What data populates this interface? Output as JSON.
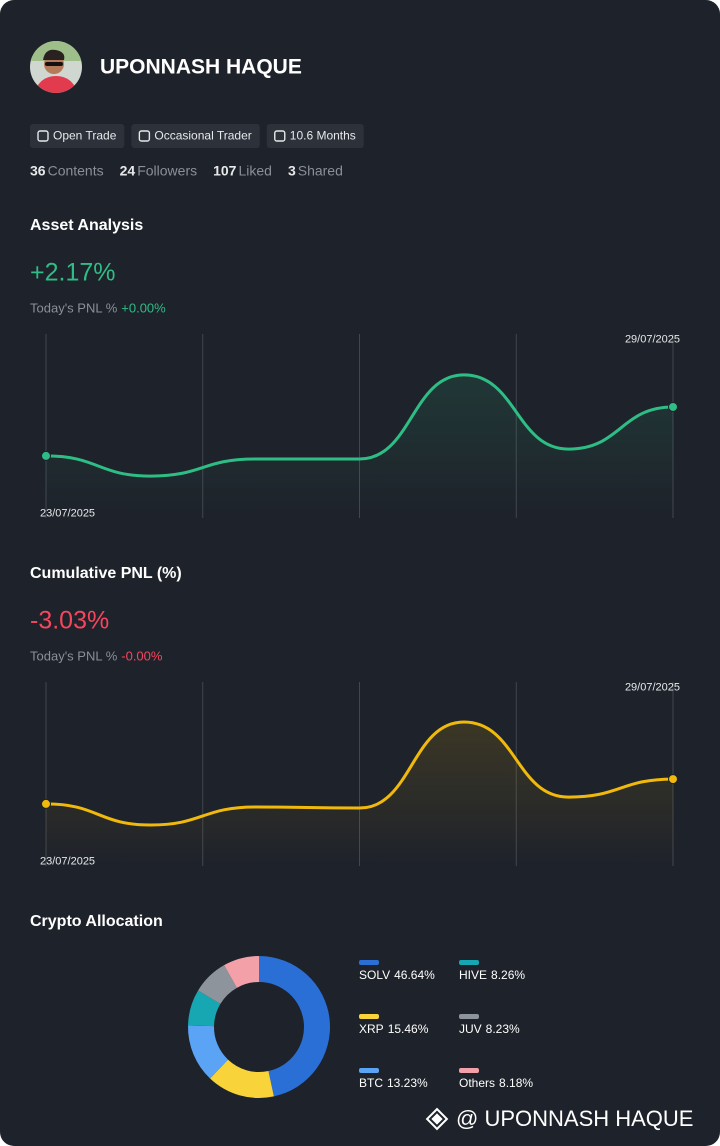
{
  "profile": {
    "name": "UPONNASH HAQUE",
    "badges": [
      "Open Trade",
      "Occasional Trader",
      "10.6 Months"
    ],
    "stats": [
      {
        "value": "36",
        "label": "Contents"
      },
      {
        "value": "24",
        "label": "Followers"
      },
      {
        "value": "107",
        "label": "Liked"
      },
      {
        "value": "3",
        "label": "Shared"
      }
    ]
  },
  "chart_data": [
    {
      "type": "line",
      "title": "Asset Analysis",
      "headline": "+2.17%",
      "pnl_label": "Today's PNL %",
      "pnl_value": "+0.00%",
      "categories": [
        "23/07/2025",
        null,
        null,
        null,
        null,
        null,
        "29/07/2025"
      ],
      "values": [
        35.6,
        24.4,
        33.9,
        33.9,
        80.6,
        39.4,
        62.8
      ],
      "color": "#2ebd85"
    },
    {
      "type": "line",
      "title": "Cumulative PNL (%)",
      "headline": "-3.03%",
      "pnl_label": "Today's PNL %",
      "pnl_value": "-0.00%",
      "categories": [
        "23/07/2025",
        null,
        null,
        null,
        null,
        null,
        "29/07/2025"
      ],
      "values": [
        35.6,
        23.9,
        33.9,
        33.3,
        81.1,
        39.4,
        49.4
      ],
      "color": "#f0b90b"
    },
    {
      "type": "pie",
      "title": "Crypto Allocation",
      "categories": [
        "SOLV",
        "XRP",
        "BTC",
        "HIVE",
        "JUV",
        "Others"
      ],
      "values": [
        46.64,
        15.46,
        13.23,
        8.26,
        8.23,
        8.18
      ],
      "value_labels": [
        "46.64%",
        "15.46%",
        "13.23%",
        "8.26%",
        "8.23%",
        "8.18%"
      ],
      "colors": [
        "#2a6fd6",
        "#f9d33a",
        "#5aa3f5",
        "#17a7b3",
        "#8e949c",
        "#f3a0a8"
      ]
    }
  ],
  "footer": {
    "text": "@ UPONNASH HAQUE"
  }
}
